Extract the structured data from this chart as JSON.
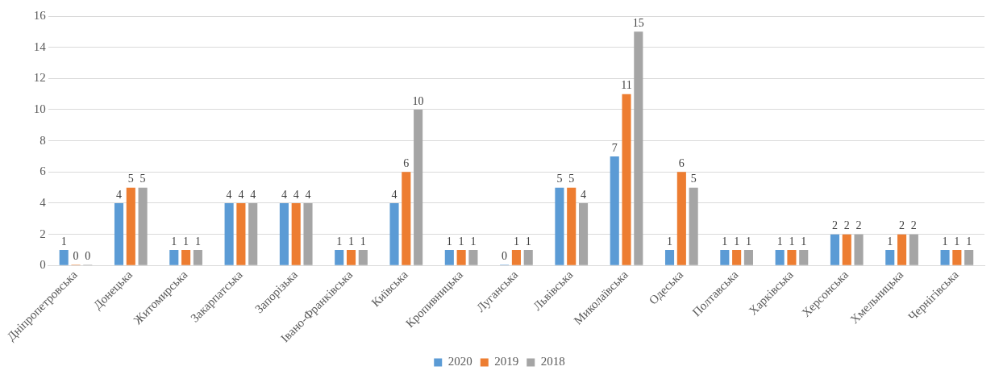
{
  "chart_data": {
    "type": "bar",
    "categories": [
      "Дніпропетровська",
      "Донецька",
      "Житомирська",
      "Закарпатська",
      "Запорізька",
      "Івано-Франківська",
      "Київська",
      "Кропивницька",
      "Луганська",
      "Львівська",
      "Миколаївська",
      "Одеська",
      "Полтавська",
      "Харківська",
      "Херсонська",
      "Хмельницька",
      "Чернігівська"
    ],
    "series": [
      {
        "name": "2020",
        "color": "#5b9bd5",
        "values": [
          1,
          4,
          1,
          4,
          4,
          1,
          4,
          1,
          0,
          5,
          7,
          1,
          1,
          1,
          2,
          1,
          1
        ]
      },
      {
        "name": "2019",
        "color": "#ed7d31",
        "values": [
          0,
          5,
          1,
          4,
          4,
          1,
          6,
          1,
          1,
          5,
          11,
          6,
          1,
          1,
          2,
          2,
          1
        ]
      },
      {
        "name": "2018",
        "color": "#a5a5a5",
        "values": [
          0,
          5,
          1,
          4,
          4,
          1,
          10,
          1,
          1,
          4,
          15,
          5,
          1,
          1,
          2,
          2,
          1
        ]
      }
    ],
    "ylim": [
      0,
      16
    ],
    "yticks": [
      0,
      2,
      4,
      6,
      8,
      10,
      12,
      14,
      16
    ],
    "grid": "y",
    "legend": "bottom",
    "data_labels": true
  }
}
